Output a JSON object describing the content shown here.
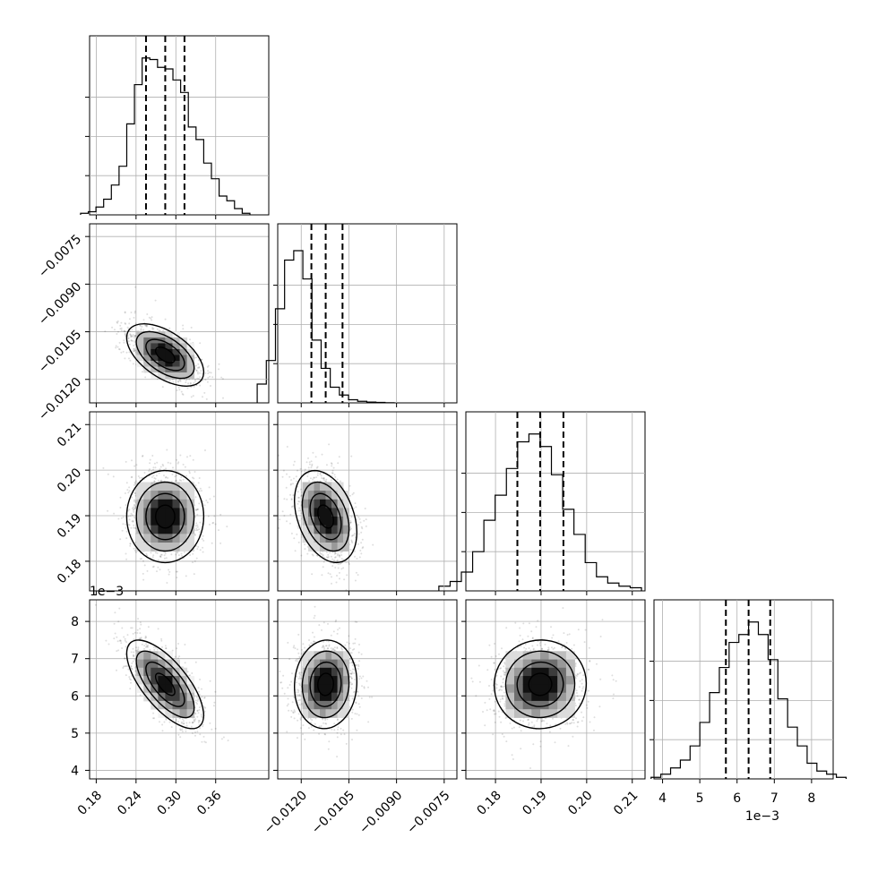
{
  "chart_data": {
    "type": "corner",
    "parameters": [
      {
        "axis_ticks": [
          "0.18",
          "0.24",
          "0.30",
          "0.36"
        ],
        "tick_values": [
          0.18,
          0.24,
          0.3,
          0.36
        ],
        "range": [
          0.17,
          0.44
        ],
        "quantiles": [
          0.255,
          0.284,
          0.313
        ],
        "offset_label": ""
      },
      {
        "axis_ticks": [
          "-0.0120",
          "-0.0105",
          "-0.0090",
          "-0.0075"
        ],
        "tick_values": [
          -0.012,
          -0.0105,
          -0.009,
          -0.0075
        ],
        "range": [
          -0.01274,
          -0.0071
        ],
        "quantiles": [
          -0.01168,
          -0.01123,
          -0.0107
        ],
        "offset_label": ""
      },
      {
        "axis_ticks": [
          "0.18",
          "0.19",
          "0.20",
          "0.21"
        ],
        "tick_values": [
          0.18,
          0.19,
          0.2,
          0.21
        ],
        "range": [
          0.1735,
          0.2128
        ],
        "quantiles": [
          0.1848,
          0.1898,
          0.1949
        ],
        "offset_label": ""
      },
      {
        "axis_ticks": [
          "4",
          "5",
          "6",
          "7",
          "8"
        ],
        "tick_values": [
          4,
          5,
          6,
          7,
          8
        ],
        "range": [
          3.77,
          8.58
        ],
        "quantiles": [
          5.7,
          6.31,
          6.89
        ],
        "offset_label": "1e−3"
      }
    ],
    "row_axis_ticks": {
      "row1": [
        "-0.0075",
        "-0.0090",
        "-0.0105",
        "-0.0120"
      ],
      "row2": [
        "0.21",
        "0.20",
        "0.19",
        "0.18"
      ],
      "row3": [
        "8",
        "7",
        "6",
        "5",
        "4"
      ],
      "row3_offset_label": "1e−3"
    },
    "histograms": [
      [
        1,
        2,
        5,
        10,
        19,
        31,
        58,
        83,
        100,
        99,
        94,
        93,
        86,
        78,
        56,
        48,
        33,
        23,
        12,
        9,
        4,
        1
      ],
      [
        12,
        27,
        60,
        91,
        97,
        79,
        40,
        22,
        10,
        5,
        2,
        1,
        0.5,
        0.3,
        0.1
      ],
      [
        3,
        6,
        12,
        25,
        45,
        61,
        78,
        95,
        100,
        92,
        74,
        52,
        36,
        18,
        9,
        5,
        3,
        2
      ],
      [
        1,
        3,
        7,
        12,
        21,
        36,
        55,
        71,
        87,
        92,
        100,
        92,
        76,
        51,
        33,
        21,
        10,
        5,
        3,
        1
      ]
    ],
    "posterior_means": [
      0.284,
      -0.01123,
      0.1898,
      6.31
    ],
    "correlations": {
      "1-0": -0.55,
      "2-0": 0.0,
      "2-1": -0.35,
      "3-0": -0.7,
      "3-1": 0.05,
      "3-2": 0.02
    },
    "quantile_lines": "dashed",
    "contour_levels": 4,
    "grid": true
  }
}
